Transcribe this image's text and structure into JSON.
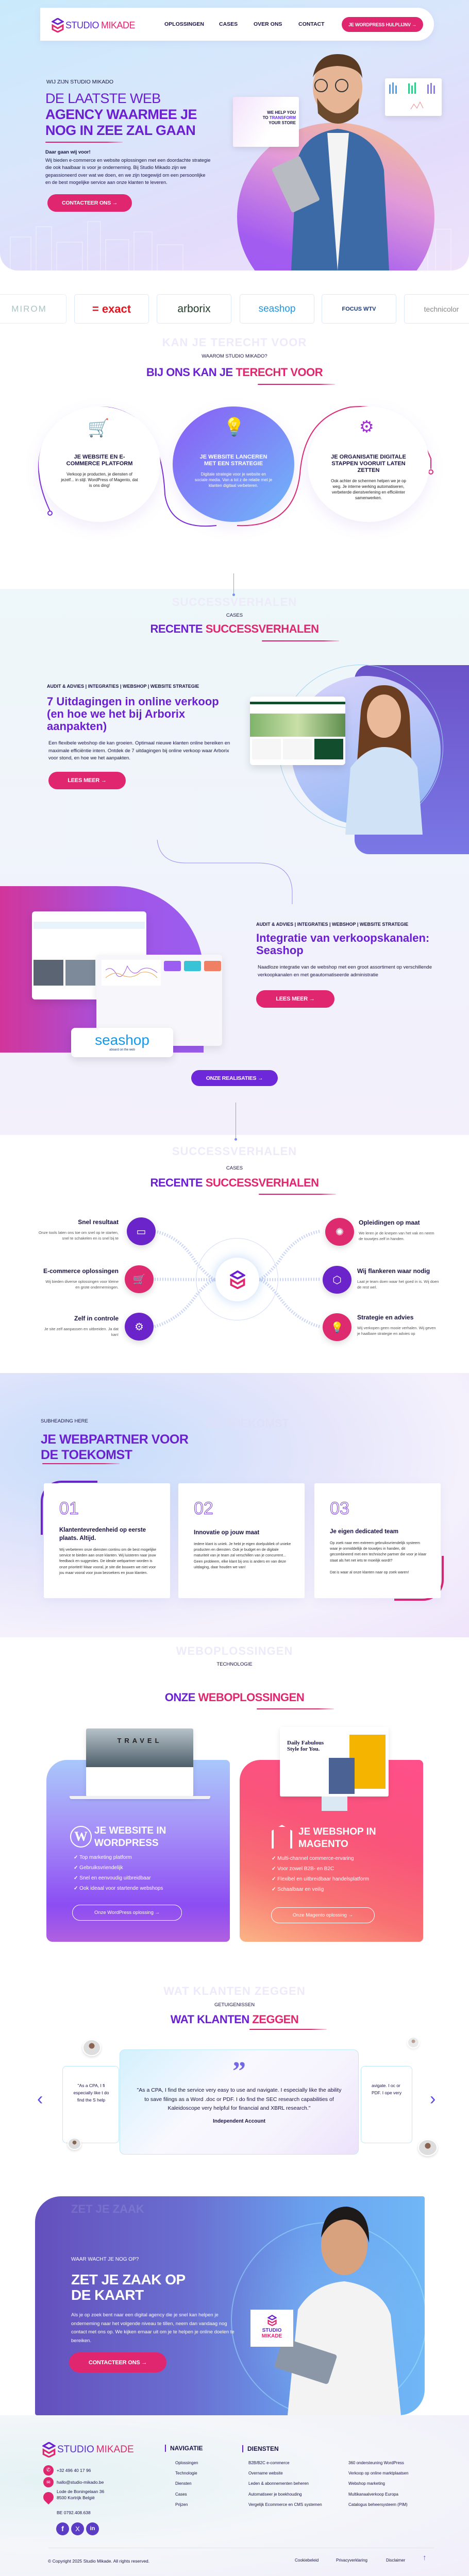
{
  "colors": {
    "purple": "#6a1fd1",
    "pink": "#e0266f",
    "navy": "#1b1446"
  },
  "header": {
    "logo_a": "STUDIO",
    "logo_b": "MIKADE",
    "nav": [
      "OPLOSSINGEN",
      "CASES",
      "OVER ONS",
      "CONTACT"
    ],
    "cta": "JE WORDPRESS HULPLIJNV →"
  },
  "hero": {
    "kicker": "WIJ ZIJN STUDIO MIKADO",
    "title": [
      "DE LAATSTE WEB",
      "AGENCY WAARMEE JE",
      "NOG IN ZEE ZAL GAAN"
    ],
    "lead": "Daar gaan wij voor!",
    "text": "Wij bieden e-commerce en website oplossingen met een doordachte strategie die ook haalbaar is voor je onderneming. Bij Studio Mikado zijn we gepassioneerd over wat we doen, en we zijn toegewijd om een persoonlijke en de best mogelijke service aan onze klanten te leveren.",
    "cta": "CONTACTEER ONS →",
    "mockup": [
      "WE HELP YOU",
      "TO",
      "TRANSFORM",
      "YOUR STORE"
    ]
  },
  "logos": [
    "MIROM",
    "= exact",
    "arborix",
    "seashop",
    "FOCUS WTV",
    "technicolor"
  ],
  "why": {
    "watermark": "KAN JE TERECHT VOOR",
    "label": "WAAROM STUDIO MIKADO?",
    "title_a": "BIJ ONS KAN JE",
    "title_b": "TERECHT VOOR",
    "items": [
      {
        "title": "JE WEBSITE EN E-COMMERCE PLATFORM",
        "text": "Verkoop je producten, je diensten of jezelf... in stijl. WordPress of Magento, dat is ons ding!",
        "icon": "ecommerce-icon"
      },
      {
        "title": "JE WEBSITE LANCEREN MET EEN STRATEGIE",
        "text": "Digitale strategie voor je website en sociale media. Van a tot z de relatie met je klanten digitaal verbeteren.",
        "icon": "lightbulb-gear-icon"
      },
      {
        "title": "JE ORGANISATIE DIGITALE STAPPEN VOORUIT LATEN ZETTEN",
        "text": "Ook achter de schermen helpen we je op weg. Je interne werking automatiseren, verbeterde dienstverlening en efficiënter samenwerken.",
        "icon": "digital-gear-icon"
      }
    ]
  },
  "cases": {
    "watermark": "SUCCESSVERHALEN",
    "label": "CASES",
    "title_a": "RECENTE",
    "title_b": "SUCCESSVERHALEN",
    "items": [
      {
        "tags": "AUDIT & ADVIES | INTEGRATIES | WEBSHOP | WEBSITE STRATEGIE",
        "title": "7 Uitdagingen in online verkoop (en hoe we het bij Arborix aanpakten)",
        "text": "Een flexibele webshop die kan groeien. Optimaal nieuwe klanten online bereiken en maximale efficiëntie intern. Ontdek de 7 uitdagingen bij online verkoop waar Arborix voor stond, en hoe we het aanpakten.",
        "cta": "LEES MEER →"
      },
      {
        "tags": "AUDIT & ADVIES | INTEGRATIES | WEBSHOP | WEBSITE STRATEGIE",
        "title": "Integratie van verkoopskanalen: Seashop",
        "text": "Naadloze integratie van de webshop met een groot assortiment op verschillende verkoopkanalen en met geautomatiseerde administratie",
        "cta": "LEES MEER →",
        "logo": "seashop",
        "logo_sub": "aboard on the web"
      }
    ],
    "all": "ONZE REALISATIES →"
  },
  "features": {
    "watermark": "SUCCESSVERHALEN",
    "label": "CASES",
    "title_a": "RECENTE",
    "title_b": "SUCCESSVERHALEN",
    "left": [
      {
        "title": "Snel resultaat",
        "text": "Onze tools laten ons toe om snel op te starten, snel te schakelen en is snel bij te",
        "icon": "browser-icon"
      },
      {
        "title": "E-commerce oplossingen",
        "text": "Wij bieden diverse oplossingen voor kleine en grote ondernemingen.",
        "icon": "cart-icon"
      },
      {
        "title": "Zelf in controle",
        "text": "Je site zelf aanpassen en uitbreiden. Ja dat kan!",
        "icon": "settings-icon"
      }
    ],
    "right": [
      {
        "title": "Opleidingen op maat",
        "text": "We leren je de knepen van het vak en neem de touwtjes zelf in handen.",
        "icon": "training-icon"
      },
      {
        "title": "Wij flankeren waar nodig",
        "text": "Laat je team doen waar het goed in is. Wij doen de rest wel.",
        "icon": "team-network-icon"
      },
      {
        "title": "Strategie en advies",
        "text": "Wij verkopen geen mooie verhalen. Wij geven je haalbare strategie en advies op",
        "icon": "lightbulb-icon"
      }
    ]
  },
  "partner": {
    "watermark": "DE TOEKOMST",
    "label": "SUBHEADING HERE",
    "title": [
      "JE WEBPARTNER VOOR",
      "DE TOEKOMST"
    ],
    "cards": [
      {
        "num": "01",
        "title": "Klantentevredenheid op eerste plaats. Altijd.",
        "text": "Wij verbeteren onze diensten continu om de best mogelijke service te bieden aan onze klanten. Wij luisteren naar jouw feedback en suggesties. De ideale webpartner worden is onze prioriteit! Maar vooral, je site die bouwen we niet voor jou maar vooral voor jouw bezoekers en jouw klanten."
      },
      {
        "num": "02",
        "title": "Innovatie op jouw maat",
        "text": "Iedere klant is uniek. Je hebt je eigen doelpubliek of unieke producten en diensten. Ook je budget en de digitale maturiteit van je team zal verschillen van je concurrent... Geen probleem, elke klant bij ons is anders en van deze uitdaging, daar houden we van!"
      },
      {
        "num": "03",
        "title": "Je eigen dedicated team",
        "text": "Op zoek naar een extreem gebruiksvriendelijk systeem waar je onmiddellijk de touwtjes in handen, dit gecombineerd met een technische partner die voor je klaar staat als het net iets te moeilijk wordt?",
        "text2": "Dat is waar al onze klanten naar op zoek waren!"
      }
    ]
  },
  "tech": {
    "watermark": "WEBOPLOSSINGEN",
    "label": "TECHNOLOGIE",
    "title_a": "ONZE",
    "title_b": "WEBOPLOSSINGEN",
    "wp": {
      "title": [
        "JE WEBSITE IN",
        "WORDPRESS"
      ],
      "list": [
        "Top marketing platform",
        "Gebruiksvriendelijk",
        "Snel en eenvoudig uitbreidbaar",
        "Ook ideaal voor startende webshops"
      ],
      "cta": "Onze WordPress oplossing →",
      "mock": "TRAVEL"
    },
    "mg": {
      "title": [
        "JE WEBSHOP IN",
        "MAGENTO"
      ],
      "list": [
        "Multi-channel commerce-ervaring",
        "Voor zowel B2B- en B2C",
        "Flexibel en uitbreidbaar handelsplatform",
        "Schaalbaar en veilig"
      ],
      "cta": "Onze Magento oplossing →",
      "mock": "Daily Fabulous Style for You."
    }
  },
  "testimonials": {
    "watermark": "WAT KLANTEN ZEGGEN",
    "label": "GETUIGENISSEN",
    "title_a": "WAT KLANTEN",
    "title_b": "ZEGGEN",
    "quote": "\"As a CPA, I find the service very easy to use and navigate. I especially like the ability to save filings as a Word .doc or PDF. I do find the SEC research capabilities of Kaleidoscope very helpful for financial and XBRL research.\"",
    "author": "Independent Account",
    "side_left": "\"As a CPA, I fi especially like t do find the S help",
    "side_right": "avigate. I oc or PDF. I ope very"
  },
  "cta": {
    "watermark": "ZET JE ZAAK",
    "label": "WAAR WACHT JE NOG OP?",
    "title": [
      "ZET JE ZAAK OP",
      "DE KAART"
    ],
    "text": "Als je op zoek bent naar een digital agency die je snel kan helpen je onderneming naar het volgende niveau te tillen, neem dan vandaag nog contact met ons op. We kijken ernaar uit om je te helpen je online doelen te bereiken.",
    "button": "CONTACTEER ONS →",
    "badge_a": "STUDIO",
    "badge_b": "MIKADE"
  },
  "footer": {
    "logo_a": "STUDIO",
    "logo_b": "MIKADE",
    "phone": "+32 496 40 17 96",
    "email": "hallo@studio-mikado.be",
    "address": [
      "Lode de Boningelaan 36",
      "8500 Kortrijk België"
    ],
    "vat": "BE 0792.408.638",
    "nav_title": "NAVIGATIE",
    "nav": [
      "Oplossingen",
      "Technologie",
      "Diensten",
      "Cases",
      "Prijzen"
    ],
    "services_title": "DIENSTEN",
    "services_a": [
      "B2B/B2C e-commerce",
      "Overname website",
      "Leden & abonnementen beheren",
      "Automatiseer je boekhouding",
      "Vergelijk Ecommerce en CMS systemen"
    ],
    "services_b": [
      "360 ondersteuning WordPress",
      "Verkoop op online marktplaatsen",
      "Webshop marketing",
      "Multikanaalverkoop Europa",
      "Catalogus beheersysteem (PIM)"
    ],
    "copyright": "© Copyright 2025 Studio Mikade. All rights reserved.",
    "legal": [
      "Cookiebeleid",
      "Privacyverklaring",
      "Disclaimer"
    ]
  }
}
